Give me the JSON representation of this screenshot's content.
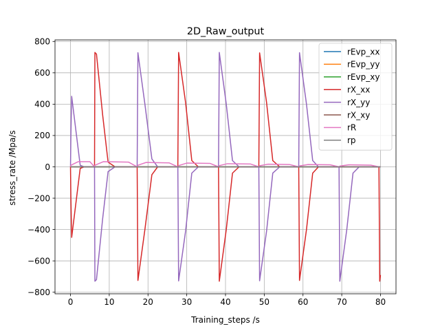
{
  "chart_data": {
    "type": "line",
    "title": "2D_Raw_output",
    "xlabel": "Training_steps /s",
    "ylabel": "stress_rate /Mpa/s",
    "xlim": [
      -4,
      84
    ],
    "ylim": [
      -810,
      810
    ],
    "xticks": [
      0,
      10,
      20,
      30,
      40,
      50,
      60,
      70,
      80
    ],
    "yticks": [
      -800,
      -600,
      -400,
      -200,
      0,
      200,
      400,
      600,
      800
    ],
    "grid": true,
    "legend_position": "top-right",
    "series": [
      {
        "name": "rEvp_xx",
        "color": "#1f77b4",
        "points": [
          [
            0,
            0
          ],
          [
            80,
            0
          ]
        ]
      },
      {
        "name": "rEvp_yy",
        "color": "#ff7f0e",
        "points": [
          [
            0,
            0
          ],
          [
            80,
            0
          ]
        ]
      },
      {
        "name": "rEvp_xy",
        "color": "#2ca02c",
        "points": [
          [
            0,
            0
          ],
          [
            80,
            0
          ]
        ]
      },
      {
        "name": "rX_xx",
        "color": "#d62728",
        "points": [
          [
            0,
            0
          ],
          [
            0.1,
            -200
          ],
          [
            0.3,
            -450
          ],
          [
            2.5,
            -10
          ],
          [
            3.5,
            0
          ],
          [
            6.2,
            0
          ],
          [
            6.3,
            730
          ],
          [
            6.7,
            720
          ],
          [
            8.3,
            330
          ],
          [
            9.7,
            30
          ],
          [
            11.5,
            0
          ],
          [
            17.2,
            0
          ],
          [
            17.4,
            -725
          ],
          [
            19.2,
            -400
          ],
          [
            21,
            -50
          ],
          [
            22.5,
            0
          ],
          [
            27.7,
            0
          ],
          [
            27.9,
            730
          ],
          [
            29.7,
            410
          ],
          [
            31.3,
            40
          ],
          [
            33,
            0
          ],
          [
            38.2,
            0
          ],
          [
            38.4,
            -730
          ],
          [
            40.2,
            -400
          ],
          [
            41.8,
            -40
          ],
          [
            43.5,
            0
          ],
          [
            48.6,
            0
          ],
          [
            48.8,
            727
          ],
          [
            50.6,
            410
          ],
          [
            52.2,
            40
          ],
          [
            54,
            0
          ],
          [
            58.9,
            0
          ],
          [
            59.1,
            -725
          ],
          [
            60.9,
            -400
          ],
          [
            62.5,
            -40
          ],
          [
            64,
            0
          ],
          [
            69.3,
            0
          ],
          [
            69.5,
            0
          ],
          [
            79.6,
            0
          ],
          [
            79.8,
            -730
          ],
          [
            80,
            -690
          ]
        ]
      },
      {
        "name": "rX_yy",
        "color": "#9467bd",
        "points": [
          [
            0,
            0
          ],
          [
            0.1,
            200
          ],
          [
            0.3,
            450
          ],
          [
            2.5,
            10
          ],
          [
            3.5,
            0
          ],
          [
            6.2,
            0
          ],
          [
            6.3,
            -730
          ],
          [
            6.7,
            -720
          ],
          [
            8.3,
            -330
          ],
          [
            9.7,
            -30
          ],
          [
            11.5,
            0
          ],
          [
            17.2,
            0
          ],
          [
            17.4,
            728
          ],
          [
            19.2,
            400
          ],
          [
            21,
            50
          ],
          [
            22.5,
            0
          ],
          [
            27.7,
            0
          ],
          [
            27.9,
            -728
          ],
          [
            29.7,
            -410
          ],
          [
            31.3,
            -40
          ],
          [
            33,
            0
          ],
          [
            38.2,
            0
          ],
          [
            38.4,
            730
          ],
          [
            40.2,
            400
          ],
          [
            41.8,
            40
          ],
          [
            43.5,
            0
          ],
          [
            48.6,
            0
          ],
          [
            48.8,
            -727
          ],
          [
            50.6,
            -410
          ],
          [
            52.2,
            -40
          ],
          [
            54,
            0
          ],
          [
            58.9,
            0
          ],
          [
            59.1,
            728
          ],
          [
            60.9,
            400
          ],
          [
            62.5,
            40
          ],
          [
            64,
            0
          ],
          [
            69.3,
            0
          ],
          [
            69.5,
            -730
          ],
          [
            71.3,
            -400
          ],
          [
            72.9,
            -40
          ],
          [
            74.5,
            0
          ],
          [
            80,
            0
          ]
        ]
      },
      {
        "name": "rX_xy",
        "color": "#8c564b",
        "points": [
          [
            0,
            0
          ],
          [
            80,
            0
          ]
        ]
      },
      {
        "name": "rR",
        "color": "#e377c2",
        "points": [
          [
            0,
            0
          ],
          [
            0.1,
            10
          ],
          [
            2,
            33
          ],
          [
            5,
            33
          ],
          [
            6.2,
            0
          ],
          [
            6.3,
            10
          ],
          [
            8.5,
            33
          ],
          [
            15,
            30
          ],
          [
            17.2,
            0
          ],
          [
            17.4,
            10
          ],
          [
            19.5,
            28
          ],
          [
            25.5,
            25
          ],
          [
            27.7,
            0
          ],
          [
            27.9,
            8
          ],
          [
            30,
            24
          ],
          [
            36,
            22
          ],
          [
            38.2,
            0
          ],
          [
            38.4,
            8
          ],
          [
            40.5,
            20
          ],
          [
            46.5,
            18
          ],
          [
            48.6,
            0
          ],
          [
            48.8,
            7
          ],
          [
            51,
            17
          ],
          [
            56.5,
            15
          ],
          [
            58.9,
            0
          ],
          [
            59.1,
            6
          ],
          [
            61.3,
            15
          ],
          [
            67,
            13
          ],
          [
            69.3,
            0
          ],
          [
            69.5,
            5
          ],
          [
            71.8,
            13
          ],
          [
            77.5,
            11
          ],
          [
            79.6,
            0
          ],
          [
            80,
            0
          ]
        ]
      },
      {
        "name": "rp",
        "color": "#7f7f7f",
        "points": [
          [
            0,
            0
          ],
          [
            80,
            0
          ]
        ]
      }
    ]
  }
}
